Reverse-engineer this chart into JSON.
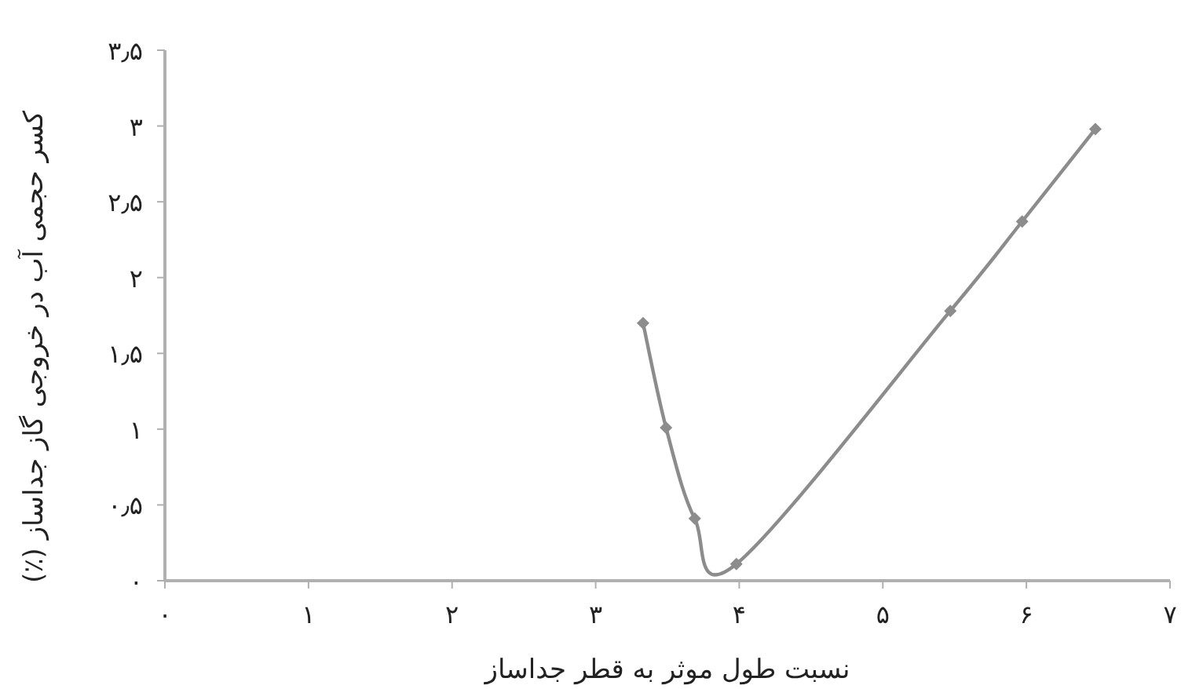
{
  "chart_data": {
    "type": "line",
    "xlabel": "نسبت طول موثر به قطر جداساز",
    "ylabel": "کسر حجمی آب در خروجی گاز جداساز (٪)",
    "x": [
      3.33,
      3.49,
      3.69,
      3.98,
      5.47,
      5.97,
      6.48
    ],
    "series": [
      {
        "color": "#8c8c8c",
        "values": [
          1.7,
          1.01,
          0.41,
          0.11,
          1.78,
          2.37,
          2.98
        ]
      }
    ],
    "xlim": [
      0,
      7
    ],
    "ylim": [
      0,
      3.5
    ],
    "xticks": [
      {
        "value": 0,
        "label": "۰"
      },
      {
        "value": 1,
        "label": "۱"
      },
      {
        "value": 2,
        "label": "۲"
      },
      {
        "value": 3,
        "label": "۳"
      },
      {
        "value": 4,
        "label": "۴"
      },
      {
        "value": 5,
        "label": "۵"
      },
      {
        "value": 6,
        "label": "۶"
      },
      {
        "value": 7,
        "label": "۷"
      }
    ],
    "yticks": [
      {
        "value": 0,
        "label": "۰"
      },
      {
        "value": 0.5,
        "label": "۰٫۵"
      },
      {
        "value": 1,
        "label": "۱"
      },
      {
        "value": 1.5,
        "label": "۱٫۵"
      },
      {
        "value": 2,
        "label": "۲"
      },
      {
        "value": 2.5,
        "label": "۲٫۵"
      },
      {
        "value": 3,
        "label": "۳"
      },
      {
        "value": 3.5,
        "label": "۳٫۵"
      }
    ],
    "grid": false,
    "marker": "diamond",
    "line_style": "solid"
  }
}
